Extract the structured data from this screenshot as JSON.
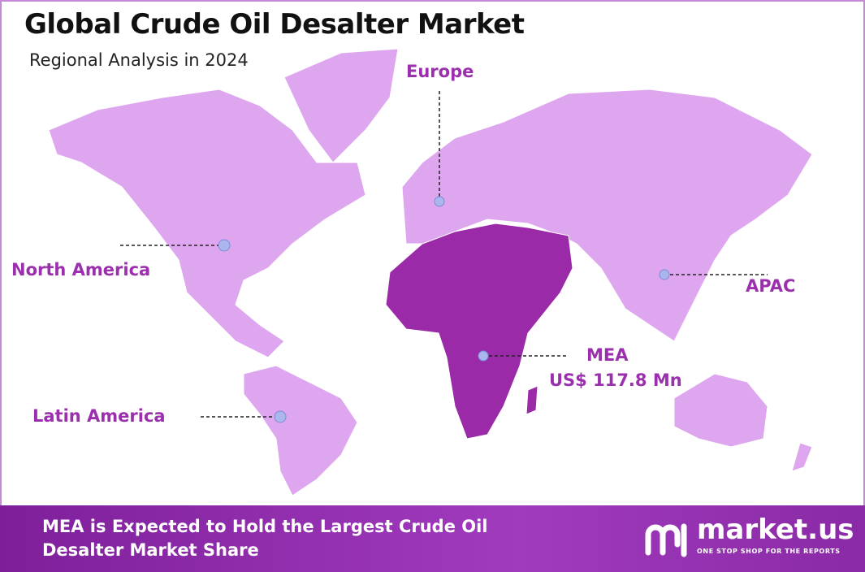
{
  "header": {
    "title": "Global Crude Oil Desalter Market",
    "subtitle": "Regional Analysis in 2024"
  },
  "regions": [
    {
      "name": "Europe"
    },
    {
      "name": "North America"
    },
    {
      "name": "APAC"
    },
    {
      "name": "MEA",
      "value": "US$ 117.8 Mn"
    },
    {
      "name": "Latin America"
    }
  ],
  "footer": {
    "text": "MEA is Expected to Hold the Largest Crude Oil Desalter Market Share",
    "brand": "market.us",
    "tagline": "ONE STOP SHOP FOR THE REPORTS"
  }
}
